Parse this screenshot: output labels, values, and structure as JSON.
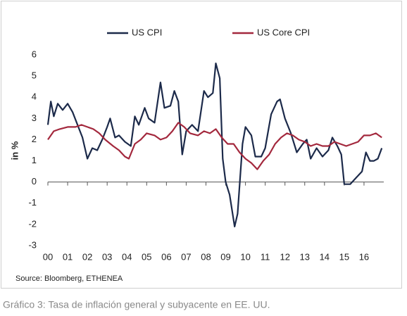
{
  "chart_data": {
    "type": "line",
    "ylabel": "in %",
    "source": "Source: Bloomberg, ETHENEA",
    "caption": "Gráfico 3: Tasa de inflación general y subyacente en EE. UU.",
    "legend": "top",
    "grid": false,
    "xlim": [
      0,
      17
    ],
    "xticks": [
      {
        "value": 0,
        "label": "00"
      },
      {
        "value": 1,
        "label": "01"
      },
      {
        "value": 2,
        "label": "02"
      },
      {
        "value": 3,
        "label": "03"
      },
      {
        "value": 4,
        "label": "04"
      },
      {
        "value": 5,
        "label": "05"
      },
      {
        "value": 6,
        "label": "06"
      },
      {
        "value": 7,
        "label": "07"
      },
      {
        "value": 8,
        "label": "08"
      },
      {
        "value": 9,
        "label": "09"
      },
      10,
      11,
      12,
      13,
      14,
      15,
      16
    ],
    "ylim": [
      -3,
      6
    ],
    "yticks": [
      -3,
      -2,
      -1,
      0,
      1,
      2,
      3,
      4,
      5,
      6
    ],
    "series": [
      {
        "name": "US CPI",
        "color": "#1c2a4a",
        "x": [
          0,
          0.15,
          0.3,
          0.5,
          0.75,
          1.0,
          1.25,
          1.5,
          1.75,
          2.0,
          2.25,
          2.5,
          2.75,
          3.0,
          3.15,
          3.4,
          3.6,
          3.9,
          4.2,
          4.4,
          4.6,
          4.9,
          5.1,
          5.4,
          5.7,
          5.9,
          6.2,
          6.4,
          6.6,
          6.8,
          7.0,
          7.3,
          7.6,
          7.9,
          8.1,
          8.35,
          8.5,
          8.7,
          8.85,
          9.0,
          9.2,
          9.45,
          9.6,
          9.85,
          10.0,
          10.3,
          10.5,
          10.8,
          11.0,
          11.3,
          11.6,
          11.75,
          12.0,
          12.3,
          12.6,
          12.9,
          13.1,
          13.3,
          13.6,
          13.9,
          14.2,
          14.4,
          14.65,
          14.85,
          15.0,
          15.3,
          15.6,
          15.9,
          16.1,
          16.3,
          16.5,
          16.7,
          16.9
        ],
        "values": [
          2.7,
          3.8,
          3.1,
          3.7,
          3.4,
          3.7,
          3.3,
          2.7,
          2.1,
          1.1,
          1.6,
          1.5,
          2.0,
          2.6,
          3.0,
          2.1,
          2.2,
          1.9,
          1.7,
          3.1,
          2.7,
          3.5,
          3.0,
          2.8,
          4.7,
          3.5,
          3.6,
          4.3,
          3.8,
          1.3,
          2.4,
          2.7,
          2.4,
          4.3,
          4.0,
          4.2,
          5.6,
          4.9,
          1.1,
          0.0,
          -0.6,
          -2.1,
          -1.5,
          1.8,
          2.6,
          2.2,
          1.2,
          1.2,
          1.6,
          3.2,
          3.8,
          3.9,
          3.0,
          2.3,
          1.4,
          1.8,
          2.0,
          1.1,
          1.6,
          1.2,
          1.5,
          2.1,
          1.7,
          1.3,
          -0.1,
          -0.1,
          0.2,
          0.5,
          1.4,
          1.0,
          1.0,
          1.1,
          1.6
        ]
      },
      {
        "name": "US Core CPI",
        "color": "#a3283d",
        "x": [
          0,
          0.3,
          0.6,
          1.0,
          1.4,
          1.7,
          2.0,
          2.3,
          2.6,
          2.9,
          3.3,
          3.6,
          3.9,
          4.1,
          4.4,
          4.7,
          5.0,
          5.4,
          5.7,
          6.0,
          6.3,
          6.6,
          6.9,
          7.2,
          7.6,
          7.9,
          8.2,
          8.5,
          8.8,
          9.1,
          9.4,
          9.7,
          10.0,
          10.3,
          10.6,
          10.9,
          11.2,
          11.5,
          11.8,
          12.1,
          12.4,
          12.7,
          13.0,
          13.3,
          13.6,
          13.9,
          14.2,
          14.5,
          14.8,
          15.1,
          15.4,
          15.7,
          16.0,
          16.3,
          16.6,
          16.9
        ],
        "values": [
          2.0,
          2.4,
          2.5,
          2.6,
          2.6,
          2.7,
          2.6,
          2.5,
          2.3,
          2.0,
          1.7,
          1.5,
          1.2,
          1.1,
          1.8,
          2.0,
          2.3,
          2.2,
          2.0,
          2.1,
          2.4,
          2.8,
          2.6,
          2.3,
          2.2,
          2.4,
          2.3,
          2.5,
          2.1,
          1.8,
          1.8,
          1.4,
          1.1,
          0.9,
          0.6,
          1.0,
          1.3,
          1.8,
          2.1,
          2.3,
          2.2,
          2.0,
          1.9,
          1.7,
          1.8,
          1.7,
          1.7,
          1.9,
          1.8,
          1.7,
          1.8,
          1.9,
          2.2,
          2.2,
          2.3,
          2.1
        ]
      }
    ]
  }
}
